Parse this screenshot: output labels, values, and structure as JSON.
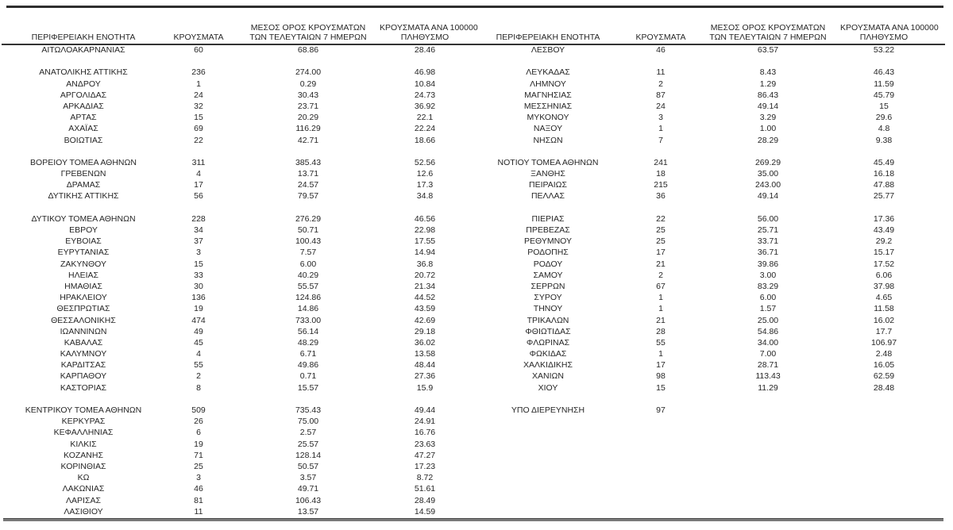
{
  "headers": {
    "region": "ΠΕΡΙΦΕΡΕΙΑΚΗ ΕΝΟΤΗΤΑ",
    "cases": "ΚΡΟΥΣΜΑΤΑ",
    "avg7_line1": "ΜΕΣΟΣ ΟΡΟΣ ΚΡΟΥΣΜΑΤΩΝ",
    "avg7_line2": "ΤΩΝ ΤΕΛΕΥΤΑΙΩΝ 7 ΗΜΕΡΩΝ",
    "per100k_line1": "ΚΡΟΥΣΜΑΤΑ ΑΝΑ 100000",
    "per100k_line2": "ΠΛΗΘΥΣΜΟ"
  },
  "colors": {
    "text": "#262626",
    "top_rule": "#2e2e2e",
    "header_rule": "#333333",
    "bottom_rule": "#7a7a7a",
    "background": "#ffffff"
  },
  "left_rows": [
    [
      "ΑΙΤΩΛΟΑΚΑΡΝΑΝΙΑΣ",
      "60",
      "68.86",
      "28.46"
    ],
    [
      "",
      "",
      "",
      ""
    ],
    [
      "ΑΝΑΤΟΛΙΚΗΣ ΑΤΤΙΚΗΣ",
      "236",
      "274.00",
      "46.98"
    ],
    [
      "ΑΝΔΡΟΥ",
      "1",
      "0.29",
      "10.84"
    ],
    [
      "ΑΡΓΟΛΙΔΑΣ",
      "24",
      "30.43",
      "24.73"
    ],
    [
      "ΑΡΚΑΔΙΑΣ",
      "32",
      "23.71",
      "36.92"
    ],
    [
      "ΑΡΤΑΣ",
      "15",
      "20.29",
      "22.1"
    ],
    [
      "ΑΧΑΪΑΣ",
      "69",
      "116.29",
      "22.24"
    ],
    [
      "ΒΟΙΩΤΙΑΣ",
      "22",
      "42.71",
      "18.66"
    ],
    [
      "",
      "",
      "",
      ""
    ],
    [
      "ΒΟΡΕΙΟΥ ΤΟΜΕΑ ΑΘΗΝΩΝ",
      "311",
      "385.43",
      "52.56"
    ],
    [
      "ΓΡΕΒΕΝΩΝ",
      "4",
      "13.71",
      "12.6"
    ],
    [
      "ΔΡΑΜΑΣ",
      "17",
      "24.57",
      "17.3"
    ],
    [
      "ΔΥΤΙΚΗΣ ΑΤΤΙΚΗΣ",
      "56",
      "79.57",
      "34.8"
    ],
    [
      "",
      "",
      "",
      ""
    ],
    [
      "ΔΥΤΙΚΟΥ ΤΟΜΕΑ ΑΘΗΝΩΝ",
      "228",
      "276.29",
      "46.56"
    ],
    [
      "ΕΒΡΟΥ",
      "34",
      "50.71",
      "22.98"
    ],
    [
      "ΕΥΒΟΙΑΣ",
      "37",
      "100.43",
      "17.55"
    ],
    [
      "ΕΥΡΥΤΑΝΙΑΣ",
      "3",
      "7.57",
      "14.94"
    ],
    [
      "ΖΑΚΥΝΘΟΥ",
      "15",
      "6.00",
      "36.8"
    ],
    [
      "ΗΛΕΙΑΣ",
      "33",
      "40.29",
      "20.72"
    ],
    [
      "ΗΜΑΘΙΑΣ",
      "30",
      "55.57",
      "21.34"
    ],
    [
      "ΗΡΑΚΛΕΙΟΥ",
      "136",
      "124.86",
      "44.52"
    ],
    [
      "ΘΕΣΠΡΩΤΙΑΣ",
      "19",
      "14.86",
      "43.59"
    ],
    [
      "ΘΕΣΣΑΛΟΝΙΚΗΣ",
      "474",
      "733.00",
      "42.69"
    ],
    [
      "ΙΩΑΝΝΙΝΩΝ",
      "49",
      "56.14",
      "29.18"
    ],
    [
      "ΚΑΒΑΛΑΣ",
      "45",
      "48.29",
      "36.02"
    ],
    [
      "ΚΑΛΥΜΝΟΥ",
      "4",
      "6.71",
      "13.58"
    ],
    [
      "ΚΑΡΔΙΤΣΑΣ",
      "55",
      "49.86",
      "48.44"
    ],
    [
      "ΚΑΡΠΑΘΟΥ",
      "2",
      "0.71",
      "27.36"
    ],
    [
      "ΚΑΣΤΟΡΙΑΣ",
      "8",
      "15.57",
      "15.9"
    ],
    [
      "",
      "",
      "",
      ""
    ],
    [
      "ΚΕΝΤΡΙΚΟΥ ΤΟΜΕΑ ΑΘΗΝΩΝ",
      "509",
      "735.43",
      "49.44"
    ],
    [
      "ΚΕΡΚΥΡΑΣ",
      "26",
      "75.00",
      "24.91"
    ],
    [
      "ΚΕΦΑΛΛΗΝΙΑΣ",
      "6",
      "2.57",
      "16.76"
    ],
    [
      "ΚΙΛΚΙΣ",
      "19",
      "25.57",
      "23.63"
    ],
    [
      "ΚΟΖΑΝΗΣ",
      "71",
      "128.14",
      "47.27"
    ],
    [
      "ΚΟΡΙΝΘΙΑΣ",
      "25",
      "50.57",
      "17.23"
    ],
    [
      "ΚΩ",
      "3",
      "3.57",
      "8.72"
    ],
    [
      "ΛΑΚΩΝΙΑΣ",
      "46",
      "49.71",
      "51.61"
    ],
    [
      "ΛΑΡΙΣΑΣ",
      "81",
      "106.43",
      "28.49"
    ],
    [
      "ΛΑΣΙΘΙΟΥ",
      "11",
      "13.57",
      "14.59"
    ]
  ],
  "right_rows": [
    [
      "ΛΕΣΒΟΥ",
      "46",
      "63.57",
      "53.22"
    ],
    [
      "",
      "",
      "",
      ""
    ],
    [
      "ΛΕΥΚΑΔΑΣ",
      "11",
      "8.43",
      "46.43"
    ],
    [
      "ΛΗΜΝΟΥ",
      "2",
      "1.29",
      "11.59"
    ],
    [
      "ΜΑΓΝΗΣΙΑΣ",
      "87",
      "86.43",
      "45.79"
    ],
    [
      "ΜΕΣΣΗΝΙΑΣ",
      "24",
      "49.14",
      "15"
    ],
    [
      "ΜΥΚΟΝΟΥ",
      "3",
      "3.29",
      "29.6"
    ],
    [
      "ΝΑΞΟΥ",
      "1",
      "1.00",
      "4.8"
    ],
    [
      "ΝΗΣΩΝ",
      "7",
      "28.29",
      "9.38"
    ],
    [
      "",
      "",
      "",
      ""
    ],
    [
      "ΝΟΤΙΟΥ ΤΟΜΕΑ ΑΘΗΝΩΝ",
      "241",
      "269.29",
      "45.49"
    ],
    [
      "ΞΑΝΘΗΣ",
      "18",
      "35.00",
      "16.18"
    ],
    [
      "ΠΕΙΡΑΙΩΣ",
      "215",
      "243.00",
      "47.88"
    ],
    [
      "ΠΕΛΛΑΣ",
      "36",
      "49.14",
      "25.77"
    ],
    [
      "",
      "",
      "",
      ""
    ],
    [
      "ΠΙΕΡΙΑΣ",
      "22",
      "56.00",
      "17.36"
    ],
    [
      "ΠΡΕΒΕΖΑΣ",
      "25",
      "25.71",
      "43.49"
    ],
    [
      "ΡΕΘΥΜΝΟΥ",
      "25",
      "33.71",
      "29.2"
    ],
    [
      "ΡΟΔΟΠΗΣ",
      "17",
      "36.71",
      "15.17"
    ],
    [
      "ΡΟΔΟΥ",
      "21",
      "39.86",
      "17.52"
    ],
    [
      "ΣΑΜΟΥ",
      "2",
      "3.00",
      "6.06"
    ],
    [
      "ΣΕΡΡΩΝ",
      "67",
      "83.29",
      "37.98"
    ],
    [
      "ΣΥΡΟΥ",
      "1",
      "6.00",
      "4.65"
    ],
    [
      "ΤΗΝΟΥ",
      "1",
      "1.57",
      "11.58"
    ],
    [
      "ΤΡΙΚΑΛΩΝ",
      "21",
      "25.00",
      "16.02"
    ],
    [
      "ΦΘΙΩΤΙΔΑΣ",
      "28",
      "54.86",
      "17.7"
    ],
    [
      "ΦΛΩΡΙΝΑΣ",
      "55",
      "34.00",
      "106.97"
    ],
    [
      "ΦΩΚΙΔΑΣ",
      "1",
      "7.00",
      "2.48"
    ],
    [
      "ΧΑΛΚΙΔΙΚΗΣ",
      "17",
      "28.71",
      "16.05"
    ],
    [
      "ΧΑΝΙΩΝ",
      "98",
      "113.43",
      "62.59"
    ],
    [
      "ΧΙΟΥ",
      "15",
      "11.29",
      "28.48"
    ],
    [
      "",
      "",
      "",
      ""
    ],
    [
      "ΥΠΟ ΔΙΕΡΕΥΝΗΣΗ",
      "97",
      "",
      ""
    ]
  ]
}
